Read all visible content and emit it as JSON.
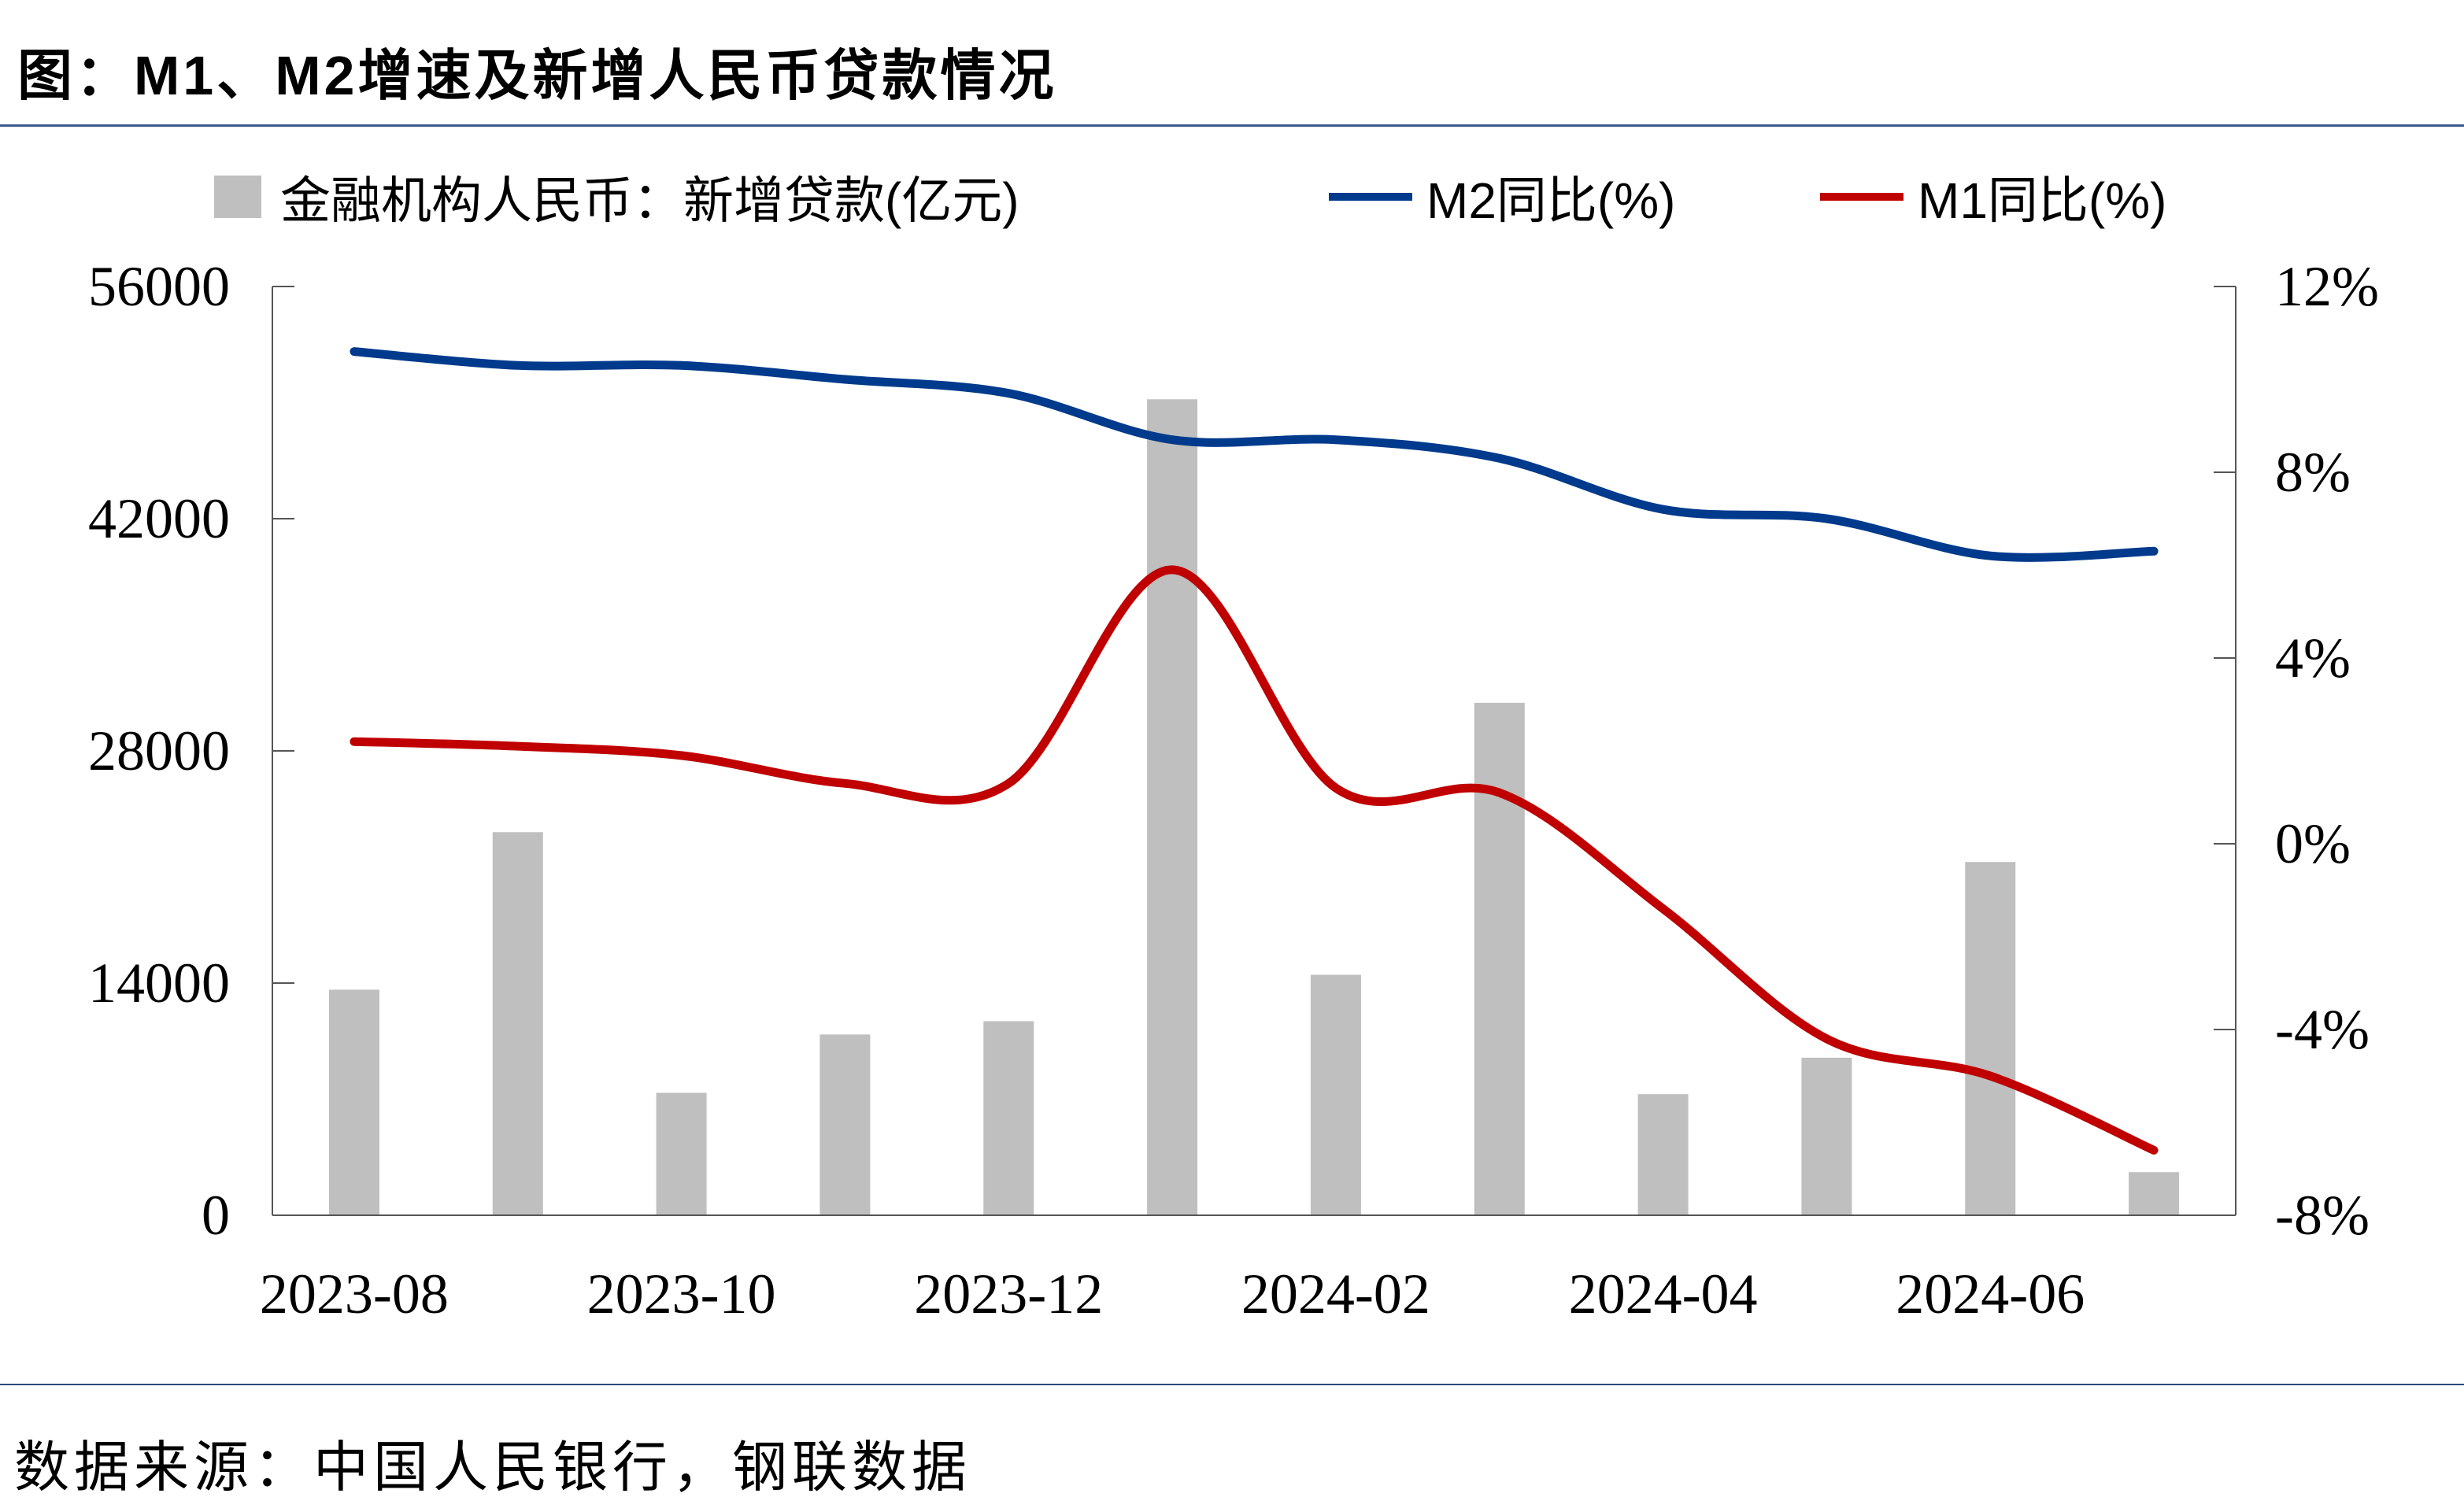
{
  "title": "图：M1、M2增速及新增人民币贷款情况",
  "source": "数据来源：中国人民银行，钢联数据",
  "chart_data": {
    "type": "bar+line",
    "categories": [
      "2023-08",
      "2023-09",
      "2023-10",
      "2023-11",
      "2023-12",
      "2024-01",
      "2024-02",
      "2024-03",
      "2024-04",
      "2024-05",
      "2024-06",
      "2024-07"
    ],
    "x_tick_labels": [
      "2023-08",
      "2023-10",
      "2023-12",
      "2024-02",
      "2024-04",
      "2024-06"
    ],
    "left_axis": {
      "ylim": [
        0,
        56000
      ],
      "ticks": [
        "0",
        "14000",
        "28000",
        "42000",
        "56000"
      ]
    },
    "right_axis": {
      "ylim": [
        -8,
        12
      ],
      "ticks": [
        "-8%",
        "-4%",
        "0%",
        "4%",
        "8%",
        "12%"
      ]
    },
    "series": [
      {
        "name": "金融机构人民币：新增贷款(亿元)",
        "type": "bar",
        "axis": "left",
        "color": "#bfbfbf",
        "values": [
          13600,
          23100,
          7384,
          10900,
          11700,
          49200,
          14500,
          30900,
          7300,
          9500,
          21300,
          2600
        ]
      },
      {
        "name": "M2同比(%)",
        "type": "line",
        "axis": "right",
        "color": "#003a8c",
        "values": [
          10.6,
          10.3,
          10.3,
          10.0,
          9.7,
          8.7,
          8.7,
          8.3,
          7.2,
          7.0,
          6.2,
          6.3
        ]
      },
      {
        "name": "M1同比(%)",
        "type": "line",
        "axis": "right",
        "color": "#c00000",
        "values": [
          2.2,
          2.1,
          1.9,
          1.3,
          1.3,
          5.9,
          1.2,
          1.1,
          -1.4,
          -4.2,
          -5.0,
          -6.6
        ]
      }
    ],
    "grid": false,
    "legend_position": "top"
  }
}
